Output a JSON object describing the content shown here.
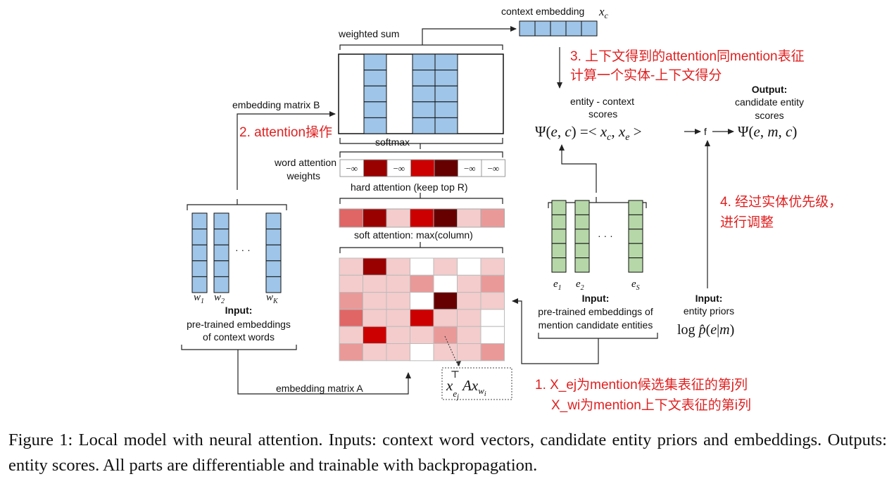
{
  "labels": {
    "context_embedding": "context embedding",
    "weighted_sum": "weighted sum",
    "embedding_matrix_b": "embedding matrix B",
    "softmax": "softmax",
    "word_attention_weights_1": "word attention",
    "word_attention_weights_2": "weights",
    "hard_attention": "hard attention (keep top R)",
    "soft_attention": "soft attention: max(column)",
    "embedding_matrix_a": "embedding matrix A",
    "input_words_title": "Input:",
    "input_words_1": "pre-trained embeddings",
    "input_words_2": "of context words",
    "input_entities_title": "Input:",
    "input_entities_1": "pre-trained embeddings of",
    "input_entities_2": "mention candidate entities",
    "input_priors_title": "Input:",
    "input_priors_1": "entity priors",
    "entity_context_1": "entity - context",
    "entity_context_2": "scores",
    "output_title": "Output:",
    "output_1": "candidate entity",
    "output_2": "scores",
    "f": "f",
    "dots": "· · ·",
    "neg_inf": "−∞"
  },
  "annotations": {
    "a1_line1": "1. X_ej为mention候选集表征的第j列",
    "a1_line2": "X_wi为mention上下文表征的第i列",
    "a2": "2. attention操作",
    "a3_line1": "3. 上下文得到的attention同mention表征",
    "a3_line2": "计算一个实体-上下文得分",
    "a4_line1": "4. 经过实体优先级，",
    "a4_line2": "进行调整"
  },
  "caption": "Figure 1: Local model with neural attention. Inputs: context word vectors, candidate entity priors and embeddings. Outputs: entity scores. All parts are differentiable and trainable with backpropagation.",
  "colors": {
    "word_vec": "#9fc5e8",
    "entity_vec": "#b6d7a8",
    "attn_palette": [
      "#ffffff",
      "#f4cccc",
      "#ea9999",
      "#e06666",
      "#cc0000",
      "#990000",
      "#660000"
    ]
  },
  "attention": {
    "word_weights": [
      "neg",
      5,
      "neg",
      4,
      6,
      "neg",
      "neg"
    ],
    "soft_row": [
      3,
      5,
      1,
      4,
      6,
      1,
      2
    ],
    "matrix": [
      [
        1,
        5,
        1,
        0,
        1,
        0,
        1
      ],
      [
        1,
        1,
        1,
        2,
        0,
        1,
        2
      ],
      [
        2,
        1,
        1,
        0,
        6,
        1,
        1
      ],
      [
        3,
        1,
        1,
        4,
        1,
        1,
        0
      ],
      [
        1,
        4,
        1,
        1,
        2,
        1,
        0
      ],
      [
        2,
        1,
        1,
        0,
        1,
        1,
        2
      ]
    ]
  }
}
